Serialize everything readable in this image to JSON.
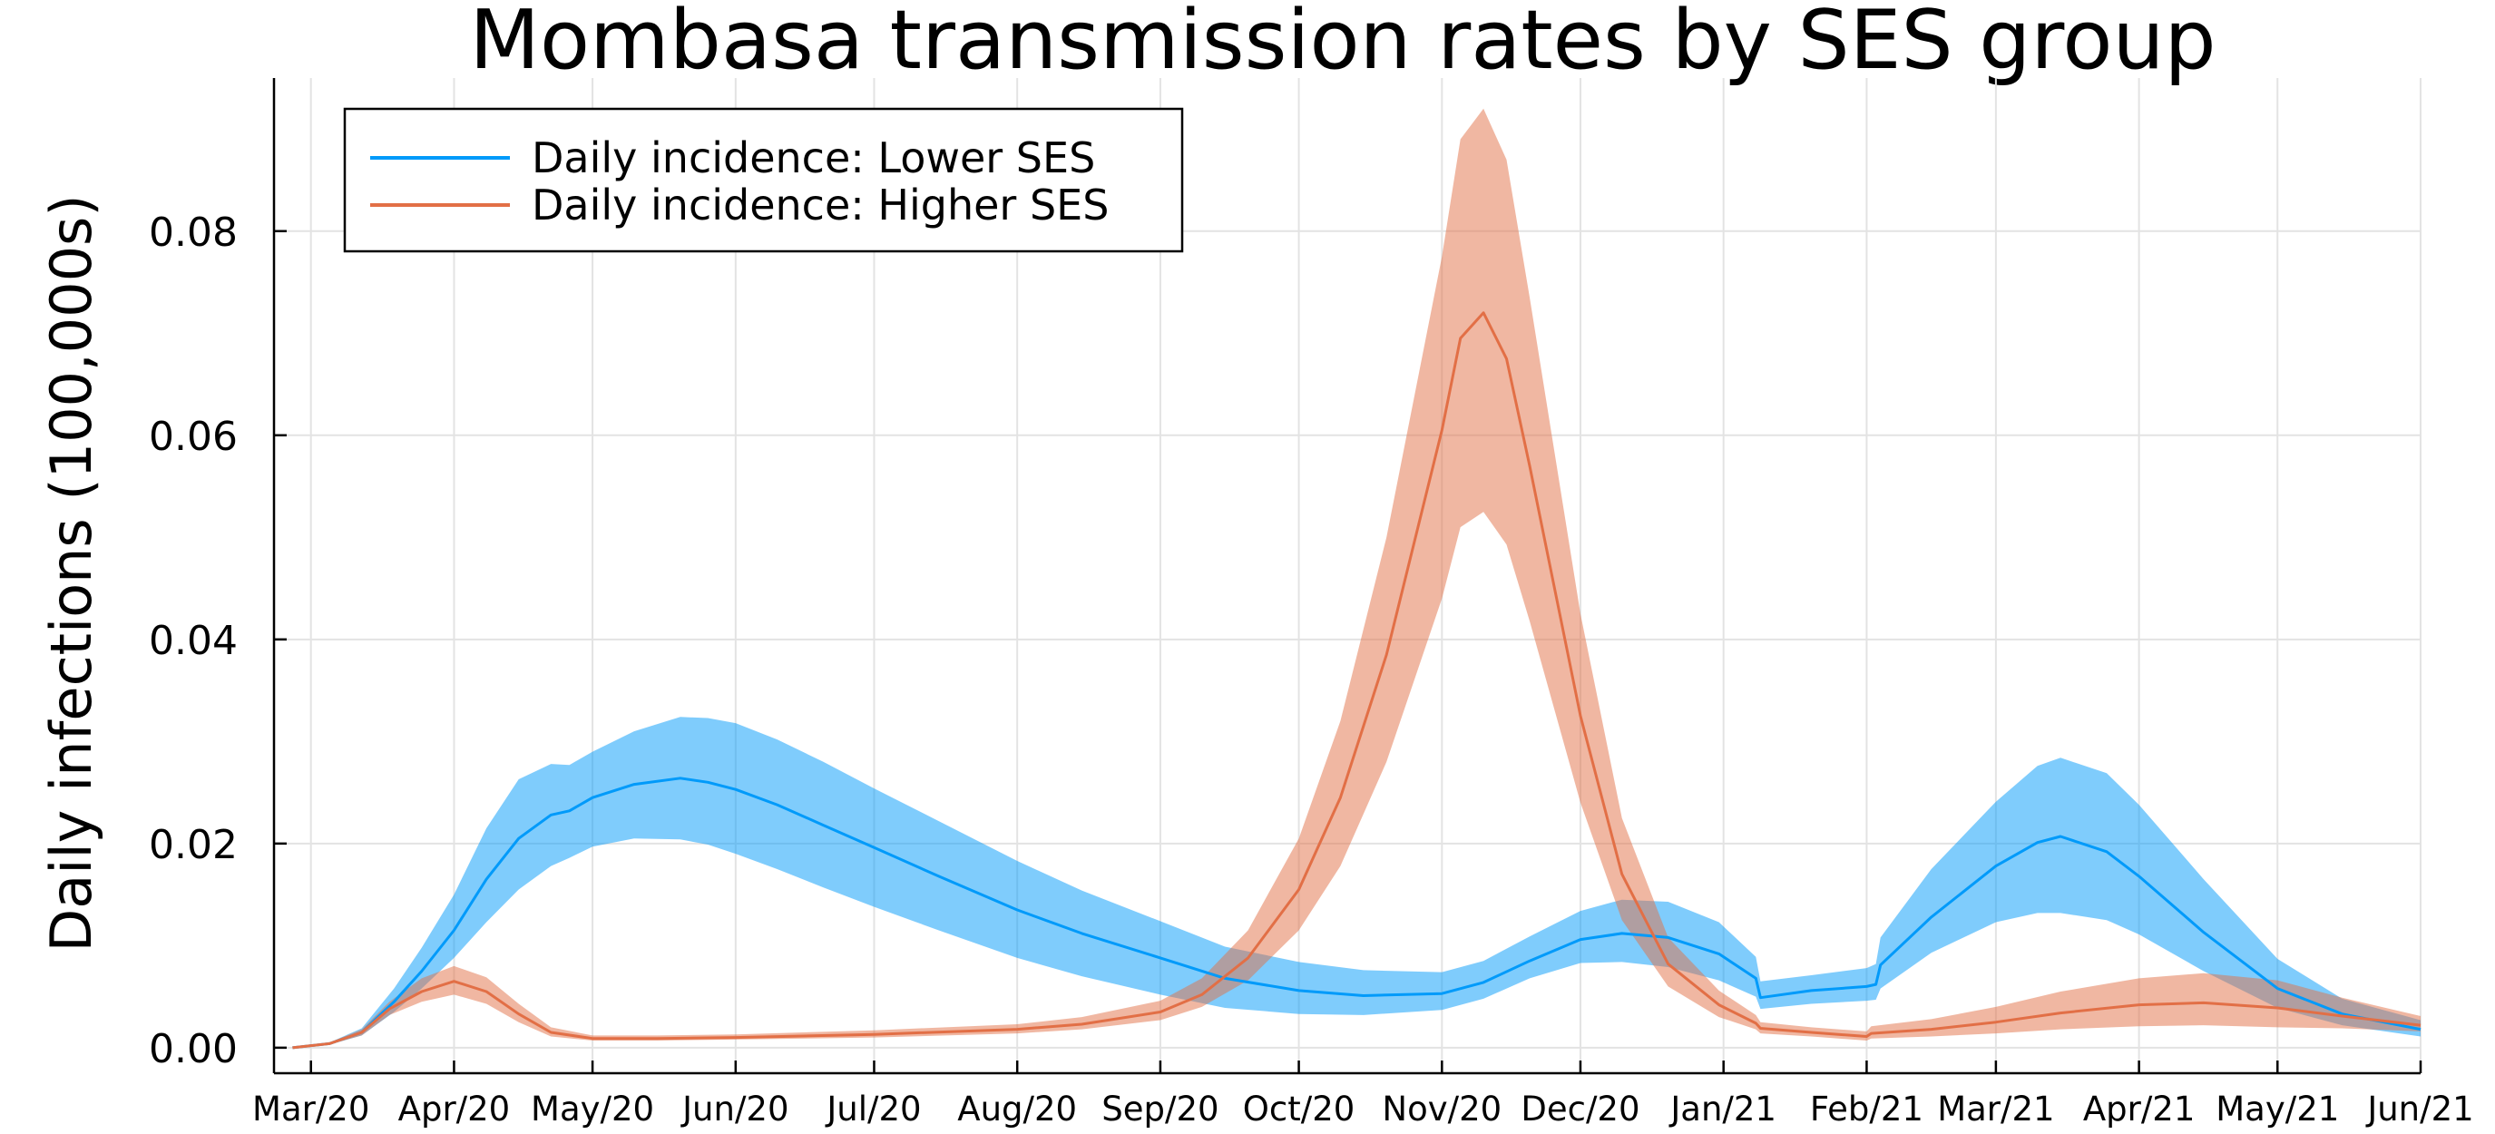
{
  "chart_data": {
    "type": "line",
    "title": "Mombasa transmission rates by SES group",
    "ylabel": "Daily infections (100,000s)",
    "xlabel": "",
    "x_axis": "date",
    "xlim": [
      "2020-02-22",
      "2021-06-01"
    ],
    "ylim": [
      -0.0025,
      0.095
    ],
    "yticks": [
      0.0,
      0.02,
      0.04,
      0.06,
      0.08
    ],
    "ytick_labels": [
      "0.00",
      "0.02",
      "0.04",
      "0.06",
      "0.08"
    ],
    "xticks": [
      "2020-03-01",
      "2020-04-01",
      "2020-05-01",
      "2020-06-01",
      "2020-07-01",
      "2020-08-01",
      "2020-09-01",
      "2020-10-01",
      "2020-11-01",
      "2020-12-01",
      "2021-01-01",
      "2021-02-01",
      "2021-03-01",
      "2021-04-01",
      "2021-05-01",
      "2021-06-01"
    ],
    "xtick_labels": [
      "Mar/20",
      "Apr/20",
      "May/20",
      "Jun/20",
      "Jul/20",
      "Aug/20",
      "Sep/20",
      "Oct/20",
      "Nov/20",
      "Dec/20",
      "Jan/21",
      "Feb/21",
      "Mar/21",
      "Apr/21",
      "May/21",
      "Jun/21"
    ],
    "grid": true,
    "legend_position": "top-left",
    "series": [
      {
        "name": "Daily incidence: Lower SES",
        "color": "#009AFA",
        "band_color": "#009AFA",
        "x": [
          "2020-02-26",
          "2020-03-05",
          "2020-03-12",
          "2020-03-19",
          "2020-03-25",
          "2020-04-01",
          "2020-04-08",
          "2020-04-15",
          "2020-04-22",
          "2020-04-26",
          "2020-05-01",
          "2020-05-10",
          "2020-05-20",
          "2020-05-26",
          "2020-06-01",
          "2020-06-10",
          "2020-06-20",
          "2020-07-01",
          "2020-07-15",
          "2020-08-01",
          "2020-08-15",
          "2020-09-01",
          "2020-09-15",
          "2020-10-01",
          "2020-10-15",
          "2020-11-01",
          "2020-11-10",
          "2020-11-20",
          "2020-12-01",
          "2020-12-10",
          "2020-12-20",
          "2020-12-31",
          "2021-01-08",
          "2021-01-09",
          "2021-01-20",
          "2021-02-01",
          "2021-02-03",
          "2021-02-04",
          "2021-02-15",
          "2021-03-01",
          "2021-03-10",
          "2021-03-15",
          "2021-03-25",
          "2021-04-01",
          "2021-04-15",
          "2021-05-01",
          "2021-05-15",
          "2021-06-01"
        ],
        "y": [
          0.0,
          0.0004,
          0.0015,
          0.0045,
          0.0075,
          0.0115,
          0.0165,
          0.0205,
          0.0228,
          0.0232,
          0.0245,
          0.0258,
          0.0264,
          0.026,
          0.0253,
          0.0238,
          0.0218,
          0.0196,
          0.0168,
          0.0135,
          0.0112,
          0.0088,
          0.0068,
          0.0056,
          0.0051,
          0.0053,
          0.0064,
          0.0085,
          0.0106,
          0.0112,
          0.0108,
          0.0092,
          0.0068,
          0.0049,
          0.0056,
          0.006,
          0.0062,
          0.0081,
          0.0128,
          0.0178,
          0.0201,
          0.0207,
          0.0192,
          0.0168,
          0.0113,
          0.0058,
          0.0033,
          0.0018
        ],
        "lower": [
          0.0,
          0.0003,
          0.0012,
          0.0035,
          0.0058,
          0.0088,
          0.0123,
          0.0155,
          0.0178,
          0.0186,
          0.0197,
          0.0205,
          0.0204,
          0.0199,
          0.019,
          0.0175,
          0.0157,
          0.0138,
          0.0115,
          0.0088,
          0.007,
          0.0052,
          0.0039,
          0.0033,
          0.0032,
          0.0037,
          0.0048,
          0.0068,
          0.0083,
          0.0084,
          0.0079,
          0.0066,
          0.005,
          0.0038,
          0.0043,
          0.0046,
          0.0047,
          0.0058,
          0.0093,
          0.0123,
          0.0132,
          0.0132,
          0.0125,
          0.0111,
          0.0075,
          0.0039,
          0.0022,
          0.0011
        ],
        "upper": [
          0.0,
          0.0005,
          0.0019,
          0.0058,
          0.0098,
          0.015,
          0.0215,
          0.0263,
          0.0278,
          0.0277,
          0.029,
          0.031,
          0.0324,
          0.0323,
          0.0318,
          0.0302,
          0.028,
          0.0254,
          0.0222,
          0.0183,
          0.0154,
          0.0124,
          0.0099,
          0.0084,
          0.0076,
          0.0074,
          0.0085,
          0.0109,
          0.0134,
          0.0145,
          0.0143,
          0.0123,
          0.0089,
          0.0065,
          0.0071,
          0.0078,
          0.0082,
          0.0108,
          0.0175,
          0.0241,
          0.0276,
          0.0284,
          0.0269,
          0.0238,
          0.0165,
          0.0087,
          0.0048,
          0.0027
        ]
      },
      {
        "name": "Daily incidence: Higher SES",
        "color": "#E26F46",
        "band_color": "#E26F46",
        "x": [
          "2020-02-26",
          "2020-03-05",
          "2020-03-12",
          "2020-03-18",
          "2020-03-25",
          "2020-04-01",
          "2020-04-08",
          "2020-04-15",
          "2020-04-22",
          "2020-05-01",
          "2020-05-15",
          "2020-06-01",
          "2020-07-01",
          "2020-08-01",
          "2020-08-15",
          "2020-09-01",
          "2020-09-10",
          "2020-09-20",
          "2020-10-01",
          "2020-10-10",
          "2020-10-20",
          "2020-11-01",
          "2020-11-05",
          "2020-11-10",
          "2020-11-15",
          "2020-11-20",
          "2020-12-01",
          "2020-12-10",
          "2020-12-20",
          "2020-12-31",
          "2021-01-08",
          "2021-01-09",
          "2021-01-20",
          "2021-02-01",
          "2021-02-02",
          "2021-02-15",
          "2021-03-01",
          "2021-03-15",
          "2021-04-01",
          "2021-04-15",
          "2021-05-01",
          "2021-05-15",
          "2021-06-01"
        ],
        "y": [
          0.0,
          0.0004,
          0.0015,
          0.0038,
          0.0055,
          0.0065,
          0.0055,
          0.0033,
          0.0015,
          0.0009,
          0.0009,
          0.001,
          0.0013,
          0.0018,
          0.0023,
          0.0035,
          0.0052,
          0.0088,
          0.0155,
          0.0245,
          0.0385,
          0.0605,
          0.0695,
          0.072,
          0.0675,
          0.057,
          0.0325,
          0.017,
          0.0082,
          0.0042,
          0.0024,
          0.0019,
          0.0015,
          0.0011,
          0.0014,
          0.0018,
          0.0025,
          0.0034,
          0.0042,
          0.0044,
          0.0039,
          0.0031,
          0.0022
        ],
        "lower": [
          0.0,
          0.0003,
          0.0012,
          0.0032,
          0.0045,
          0.0052,
          0.0043,
          0.0025,
          0.0011,
          0.0007,
          0.0007,
          0.0008,
          0.001,
          0.0014,
          0.0018,
          0.0027,
          0.004,
          0.0066,
          0.0115,
          0.0178,
          0.028,
          0.044,
          0.051,
          0.0525,
          0.0493,
          0.0418,
          0.024,
          0.0125,
          0.006,
          0.003,
          0.0018,
          0.0014,
          0.0011,
          0.0007,
          0.0009,
          0.0011,
          0.0014,
          0.0018,
          0.0021,
          0.0022,
          0.002,
          0.0019,
          0.0016
        ],
        "upper": [
          0.0,
          0.0005,
          0.0018,
          0.0045,
          0.0068,
          0.008,
          0.0069,
          0.0043,
          0.002,
          0.0012,
          0.0012,
          0.0013,
          0.0017,
          0.0023,
          0.003,
          0.0046,
          0.0068,
          0.0115,
          0.0205,
          0.032,
          0.05,
          0.0775,
          0.089,
          0.092,
          0.087,
          0.0735,
          0.0425,
          0.0225,
          0.0108,
          0.0056,
          0.0032,
          0.0025,
          0.002,
          0.0016,
          0.0021,
          0.0028,
          0.004,
          0.0055,
          0.0068,
          0.0073,
          0.0066,
          0.0049,
          0.0031
        ]
      }
    ]
  }
}
